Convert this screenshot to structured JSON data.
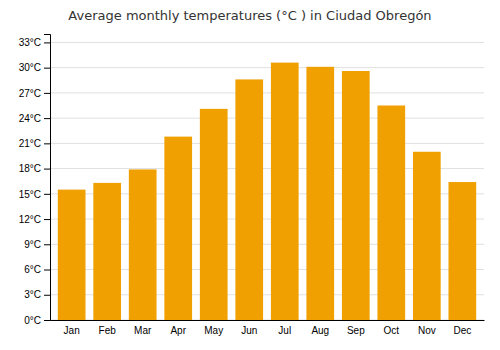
{
  "chart_data": {
    "type": "bar",
    "title": "Average monthly temperatures (°C ) in Ciudad Obregón",
    "categories": [
      "Jan",
      "Feb",
      "Mar",
      "Apr",
      "May",
      "Jun",
      "Jul",
      "Aug",
      "Sep",
      "Oct",
      "Nov",
      "Dec"
    ],
    "values": [
      15.5,
      16.3,
      17.9,
      21.8,
      25.1,
      28.6,
      30.6,
      30.1,
      29.6,
      25.5,
      20.0,
      16.4
    ],
    "color": "#F0A000",
    "ylim": [
      0,
      34
    ],
    "yticks": [
      {
        "value": 0,
        "label": "0°C"
      },
      {
        "value": 3,
        "label": "3°C"
      },
      {
        "value": 6,
        "label": "6°C"
      },
      {
        "value": 9,
        "label": "9°C"
      },
      {
        "value": 12,
        "label": "12°C"
      },
      {
        "value": 15,
        "label": "15°C"
      },
      {
        "value": 18,
        "label": "18°C"
      },
      {
        "value": 21,
        "label": "21°C"
      },
      {
        "value": 24,
        "label": "24°C"
      },
      {
        "value": 27,
        "label": "27°C"
      },
      {
        "value": 30,
        "label": "30°C"
      },
      {
        "value": 33,
        "label": "33°C"
      }
    ],
    "grid": true
  }
}
